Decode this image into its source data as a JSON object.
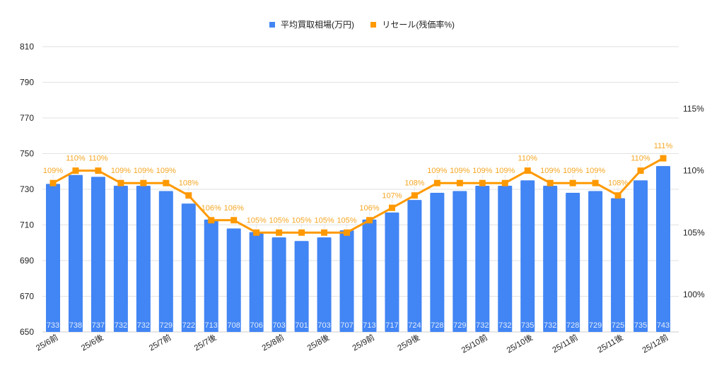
{
  "legend": {
    "items": [
      {
        "label": "平均買取相場(万円)",
        "color": "#4285f4"
      },
      {
        "label": "リセール(残価率%)",
        "color": "#ff9900"
      }
    ]
  },
  "chart_data": {
    "type": "bar+line",
    "title": "",
    "categories": [
      "25/6前",
      "",
      "25/6後",
      "",
      "",
      "25/7前",
      "",
      "25/7後",
      "",
      "",
      "25/8前",
      "",
      "25/8後",
      "",
      "25/9前",
      "",
      "25/9後",
      "",
      "",
      "25/10前",
      "",
      "25/10後",
      "",
      "25/11前",
      "",
      "25/11後",
      "",
      "25/12前"
    ],
    "series": [
      {
        "name": "平均買取相場(万円)",
        "type": "bar",
        "axis": "left",
        "color": "#4285f4",
        "values": [
          733,
          738,
          737,
          732,
          732,
          729,
          722,
          713,
          708,
          706,
          703,
          701,
          703,
          707,
          713,
          717,
          724,
          728,
          729,
          732,
          732,
          735,
          732,
          728,
          729,
          725,
          735,
          743
        ]
      },
      {
        "name": "リセール(残価率%)",
        "type": "line",
        "axis": "right",
        "color": "#ff9900",
        "values": [
          109,
          110,
          110,
          109,
          109,
          109,
          108,
          106,
          106,
          105,
          105,
          105,
          105,
          105,
          106,
          107,
          108,
          109,
          109,
          109,
          109,
          110,
          109,
          109,
          109,
          108,
          110,
          111
        ]
      }
    ],
    "left_axis": {
      "min": 650,
      "max": 810,
      "ticks": [
        650,
        670,
        690,
        710,
        730,
        750,
        770,
        790,
        810
      ]
    },
    "right_axis": {
      "ticks": [
        "100%",
        "105%",
        "110%",
        "115%"
      ],
      "values": [
        100,
        105,
        110,
        115
      ]
    },
    "grid": true,
    "legend_position": "top"
  }
}
